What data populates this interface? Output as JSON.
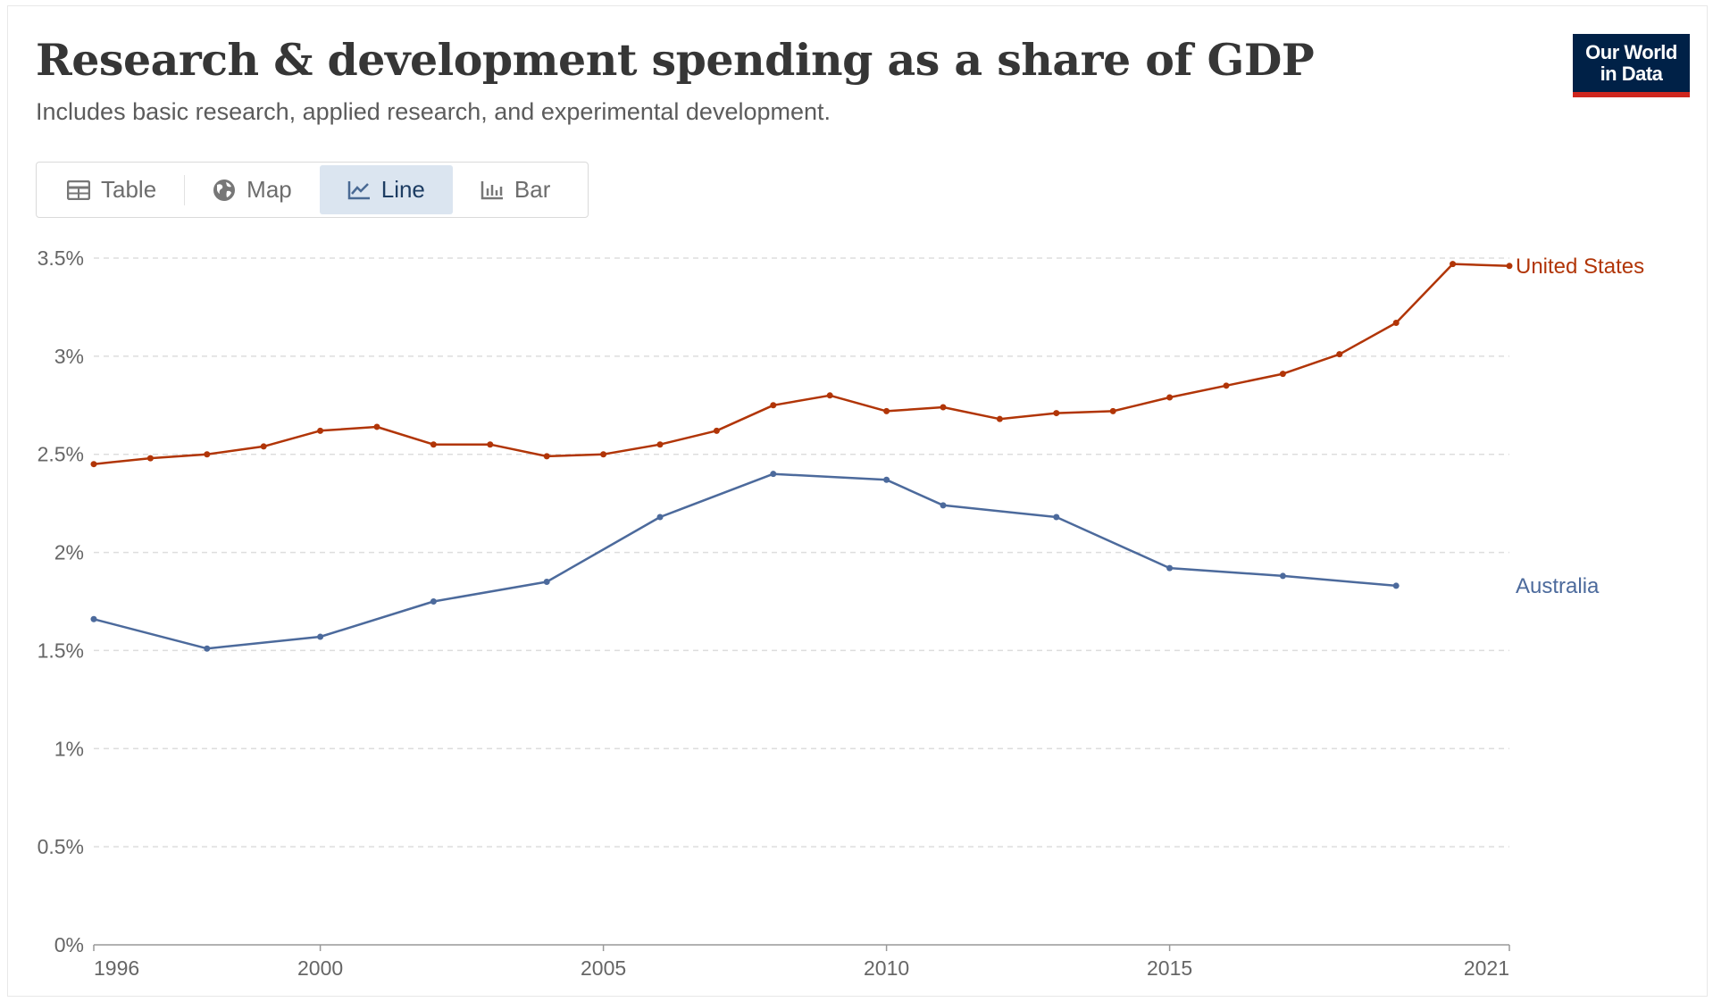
{
  "header": {
    "title": "Research & development spending as a share of GDP",
    "subtitle": "Includes basic research, applied research, and experimental development."
  },
  "logo": {
    "line1": "Our World",
    "line2": "in Data",
    "bg_color": "#002147",
    "accent_color": "#ce261e"
  },
  "tabs": [
    {
      "label": "Table",
      "icon": "table-icon",
      "active": false
    },
    {
      "label": "Map",
      "icon": "globe-icon",
      "active": false
    },
    {
      "label": "Line",
      "icon": "line-chart-icon",
      "active": true
    },
    {
      "label": "Bar",
      "icon": "bar-chart-icon",
      "active": false
    }
  ],
  "chart_data": {
    "type": "line",
    "xlim": [
      1996,
      2021
    ],
    "ylim": [
      0,
      3.5
    ],
    "x_ticks": [
      {
        "value": 1996,
        "label": "1996"
      },
      {
        "value": 2000,
        "label": "2000"
      },
      {
        "value": 2005,
        "label": "2005"
      },
      {
        "value": 2010,
        "label": "2010"
      },
      {
        "value": 2015,
        "label": "2015"
      },
      {
        "value": 2021,
        "label": "2021"
      }
    ],
    "y_ticks": [
      {
        "value": 0,
        "label": "0%"
      },
      {
        "value": 0.5,
        "label": "0.5%"
      },
      {
        "value": 1,
        "label": "1%"
      },
      {
        "value": 1.5,
        "label": "1.5%"
      },
      {
        "value": 2,
        "label": "2%"
      },
      {
        "value": 2.5,
        "label": "2.5%"
      },
      {
        "value": 3,
        "label": "3%"
      },
      {
        "value": 3.5,
        "label": "3.5%"
      }
    ],
    "grid": "horizontal dashed",
    "series": [
      {
        "name": "United States",
        "color": "#b13507",
        "x": [
          1996,
          1997,
          1998,
          1999,
          2000,
          2001,
          2002,
          2003,
          2004,
          2005,
          2006,
          2007,
          2008,
          2009,
          2010,
          2011,
          2012,
          2013,
          2014,
          2015,
          2016,
          2017,
          2018,
          2019,
          2020,
          2021
        ],
        "y": [
          2.45,
          2.48,
          2.5,
          2.54,
          2.62,
          2.64,
          2.55,
          2.55,
          2.49,
          2.5,
          2.55,
          2.62,
          2.75,
          2.8,
          2.72,
          2.74,
          2.68,
          2.71,
          2.72,
          2.79,
          2.85,
          2.91,
          3.01,
          3.17,
          3.47,
          3.46
        ]
      },
      {
        "name": "Australia",
        "color": "#4c6a9c",
        "x": [
          1996,
          1998,
          2000,
          2002,
          2004,
          2006,
          2008,
          2010,
          2011,
          2013,
          2015,
          2017,
          2019
        ],
        "y": [
          1.66,
          1.51,
          1.57,
          1.75,
          1.85,
          2.18,
          2.4,
          2.37,
          2.24,
          2.18,
          1.92,
          1.88,
          1.83
        ]
      }
    ]
  }
}
